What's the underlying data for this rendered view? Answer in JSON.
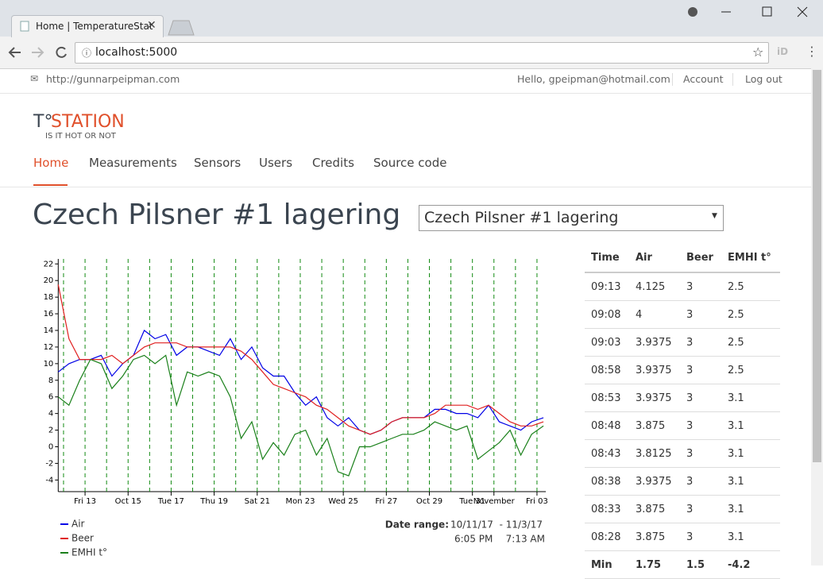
{
  "browser": {
    "tab_title": "Home | TemperatureStat",
    "url": "localhost:5000"
  },
  "header": {
    "site_link": "http://gunnarpeipman.com",
    "greeting": "Hello, gpeipman@hotmail.com",
    "account": "Account",
    "logout": "Log out"
  },
  "logo": {
    "mark": "T°",
    "name": "STATION",
    "tagline": "IS IT HOT OR NOT"
  },
  "nav": [
    "Home",
    "Measurements",
    "Sensors",
    "Users",
    "Credits",
    "Source code"
  ],
  "page_title": "Czech Pilsner #1 lagering",
  "selector": "Czech Pilsner #1 lagering",
  "chart_data": {
    "type": "line",
    "grid": true,
    "legend": "bottom-left",
    "x": [
      "2017-10-11T18:05",
      "2017-10-12T06:00",
      "2017-10-12T18:00",
      "2017-10-13T06:00",
      "2017-10-13T18:00",
      "2017-10-14T06:00",
      "2017-10-14T18:00",
      "2017-10-15T06:00",
      "2017-10-15T18:00",
      "2017-10-16T06:00",
      "2017-10-16T18:00",
      "2017-10-17T06:00",
      "2017-10-17T18:00",
      "2017-10-18T06:00",
      "2017-10-18T18:00",
      "2017-10-19T06:00",
      "2017-10-19T18:00",
      "2017-10-20T06:00",
      "2017-10-20T18:00",
      "2017-10-21T06:00",
      "2017-10-21T18:00",
      "2017-10-22T06:00",
      "2017-10-22T18:00",
      "2017-10-23T06:00",
      "2017-10-23T18:00",
      "2017-10-24T06:00",
      "2017-10-24T18:00",
      "2017-10-25T06:00",
      "2017-10-25T18:00",
      "2017-10-26T06:00",
      "2017-10-26T18:00",
      "2017-10-27T06:00",
      "2017-10-27T18:00",
      "2017-10-28T06:00",
      "2017-10-28T18:00",
      "2017-10-29T06:00",
      "2017-10-29T18:00",
      "2017-10-30T06:00",
      "2017-10-30T18:00",
      "2017-10-31T06:00",
      "2017-10-31T18:00",
      "2017-11-01T06:00",
      "2017-11-01T18:00",
      "2017-11-02T06:00",
      "2017-11-02T18:00",
      "2017-11-03T07:13"
    ],
    "series": [
      {
        "name": "Air",
        "color": "#0000e6",
        "values": [
          9,
          10,
          10.5,
          10.5,
          11,
          8.5,
          10,
          11,
          14,
          13,
          13.5,
          11,
          12,
          12,
          11.5,
          11,
          13,
          10.5,
          12,
          9.5,
          8.5,
          8.5,
          6.5,
          5,
          6,
          3.5,
          2.5,
          3.5,
          2,
          1.5,
          2,
          3,
          3.5,
          3.5,
          3.5,
          4.5,
          4.5,
          4,
          4,
          3.5,
          5,
          3,
          2.5,
          2,
          3,
          3.5
        ]
      },
      {
        "name": "Beer",
        "color": "#e02020",
        "values": [
          19.5,
          13,
          10.5,
          10.5,
          10.5,
          11,
          10,
          11,
          12,
          12.5,
          12.5,
          12.5,
          12,
          12,
          12,
          12,
          12,
          11.5,
          10.5,
          9,
          7.5,
          7,
          6.5,
          6,
          5,
          4.5,
          3.5,
          2.5,
          2,
          1.5,
          2,
          3,
          3.5,
          3.5,
          3.5,
          4,
          5,
          5,
          5,
          4.5,
          5,
          4,
          3,
          2.5,
          2.5,
          3
        ]
      },
      {
        "name": "EMHI t°",
        "color": "#1a801a",
        "values": [
          6,
          5,
          8,
          10.5,
          10,
          7,
          8.5,
          10.5,
          11,
          10,
          11,
          5,
          9,
          8.5,
          9,
          8.5,
          6,
          1,
          3,
          -1.5,
          0.5,
          -1,
          1.5,
          2,
          -1,
          1,
          -3,
          -3.5,
          0,
          0,
          0.5,
          1,
          1.5,
          1.5,
          2,
          3,
          2.5,
          2,
          2.5,
          -1.5,
          -0.5,
          0.5,
          2,
          -1,
          1.5,
          2.5
        ]
      }
    ],
    "xlim": [
      "2017-10-11T18:05",
      "2017-11-03T07:13"
    ],
    "xticks": [
      "2017-10-12",
      {
        "value": "2017-10-13",
        "label": "Fri 13"
      },
      "2017-10-14",
      {
        "value": "2017-10-15",
        "label": "Oct 15"
      },
      "2017-10-16",
      {
        "value": "2017-10-17",
        "label": "Tue 17"
      },
      "2017-10-18",
      {
        "value": "2017-10-19",
        "label": "Thu 19"
      },
      "2017-10-20",
      {
        "value": "2017-10-21",
        "label": "Sat 21"
      },
      "2017-10-22",
      {
        "value": "2017-10-23",
        "label": "Mon 23"
      },
      "2017-10-24",
      {
        "value": "2017-10-25",
        "label": "Wed 25"
      },
      "2017-10-26",
      {
        "value": "2017-10-27",
        "label": "Fri 27"
      },
      "2017-10-28",
      {
        "value": "2017-10-29",
        "label": "Oct 29"
      },
      "2017-10-30",
      {
        "value": "2017-10-31",
        "label": "Tue 31"
      },
      {
        "value": "2017-11-01",
        "label": "November"
      },
      "2017-11-02",
      {
        "value": "2017-11-03",
        "label": "Fri 03"
      }
    ],
    "ylim": [
      -5.4,
      22.6
    ],
    "yticks": [
      -4,
      -2,
      0,
      2,
      4,
      6,
      8,
      10,
      12,
      14,
      16,
      18,
      20,
      22
    ],
    "date_range": {
      "label": "Date range:",
      "from_date": "10/11/17",
      "to_date": "- 11/3/17",
      "from_time": "6:05 PM",
      "to_time": "7:13 AM"
    }
  },
  "table": {
    "columns": [
      "Time",
      "Air",
      "Beer",
      "EMHI t°"
    ],
    "rows": [
      [
        "09:13",
        4.125,
        3,
        2.5
      ],
      [
        "09:08",
        4,
        3,
        2.5
      ],
      [
        "09:03",
        3.9375,
        3,
        2.5
      ],
      [
        "08:58",
        3.9375,
        3,
        2.5
      ],
      [
        "08:53",
        3.9375,
        3,
        3.1
      ],
      [
        "08:48",
        3.875,
        3,
        3.1
      ],
      [
        "08:43",
        3.8125,
        3,
        3.1
      ],
      [
        "08:38",
        3.9375,
        3,
        3.1
      ],
      [
        "08:33",
        3.875,
        3,
        3.1
      ],
      [
        "08:28",
        3.875,
        3,
        3.1
      ],
      [
        "Min",
        1.75,
        1.5,
        -4.2
      ]
    ]
  }
}
